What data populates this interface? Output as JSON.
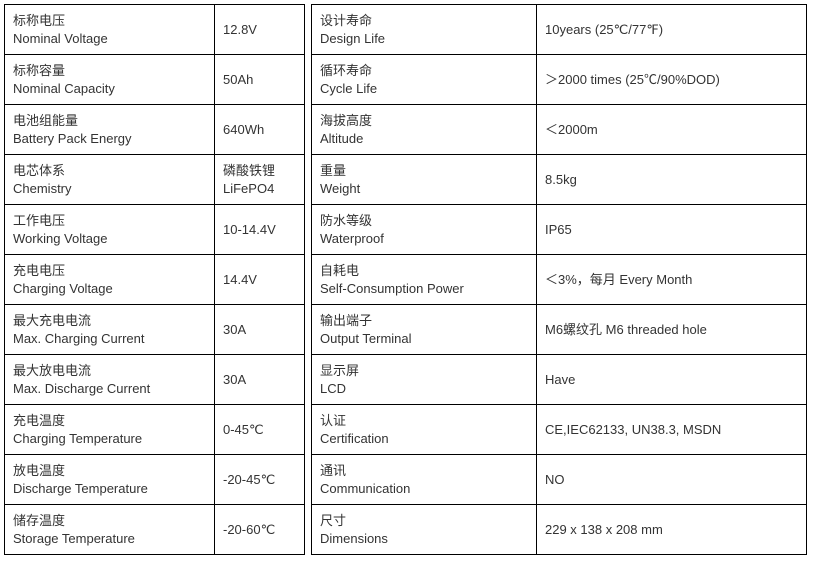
{
  "left": [
    {
      "cn": "标称电压",
      "en": "Nominal Voltage",
      "val": "12.8V"
    },
    {
      "cn": "标称容量",
      "en": "Nominal Capacity",
      "val": "50Ah"
    },
    {
      "cn": "电池组能量",
      "en": "Battery Pack Energy",
      "val": "640Wh"
    },
    {
      "cn": "电芯体系",
      "en": "Chemistry",
      "val_cn": "磷酸铁锂",
      "val_en": "LiFePO4"
    },
    {
      "cn": "工作电压",
      "en": "Working Voltage",
      "val": "10-14.4V"
    },
    {
      "cn": "充电电压",
      "en": "Charging Voltage",
      "val": "14.4V"
    },
    {
      "cn": "最大充电电流",
      "en": "Max. Charging Current",
      "val": "30A"
    },
    {
      "cn": "最大放电电流",
      "en": "Max. Discharge Current",
      "val": "30A"
    },
    {
      "cn": "充电温度",
      "en": "Charging Temperature",
      "val": "0-45℃"
    },
    {
      "cn": "放电温度",
      "en": "Discharge Temperature",
      "val": "-20-45℃"
    },
    {
      "cn": "储存温度",
      "en": "Storage Temperature",
      "val": "-20-60℃"
    }
  ],
  "right": [
    {
      "cn": "设计寿命",
      "en": "Design Life",
      "val": "10years (25℃/77℉)"
    },
    {
      "cn": "循环寿命",
      "en": "Cycle Life",
      "val": "＞2000 times (25℃/90%DOD)"
    },
    {
      "cn": "海拔高度",
      "en": "Altitude",
      "val": "＜2000m"
    },
    {
      "cn": "重量",
      "en": "Weight",
      "val": "8.5kg"
    },
    {
      "cn": "防水等级",
      "en": "Waterproof",
      "val": "IP65"
    },
    {
      "cn": "自耗电",
      "en": "Self-Consumption Power",
      "val": "＜3%，每月 Every Month"
    },
    {
      "cn": "输出端子",
      "en": "Output Terminal",
      "val": "M6螺纹孔 M6 threaded hole"
    },
    {
      "cn": "显示屏",
      "en": "LCD",
      "val": "Have"
    },
    {
      "cn": "认证",
      "en": "Certification",
      "val": "CE,IEC62133, UN38.3, MSDN"
    },
    {
      "cn": "通讯",
      "en": "Communication",
      "val": "NO"
    },
    {
      "cn": "尺寸",
      "en": "Dimensions",
      "val": "229 x 138 x 208 mm"
    }
  ]
}
